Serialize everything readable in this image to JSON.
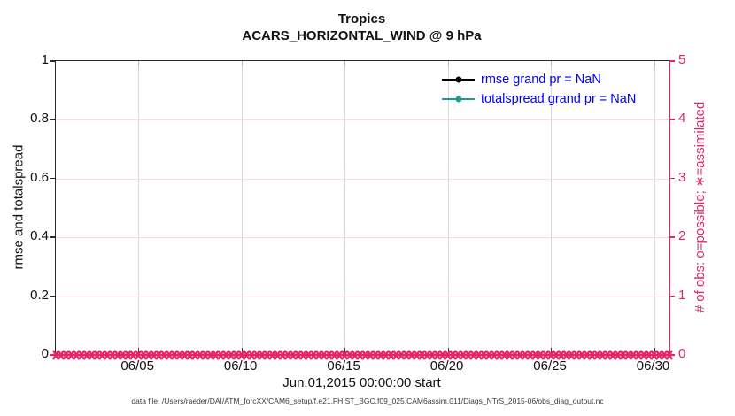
{
  "figure": {
    "title_line1": "Tropics",
    "title_line2": "ACARS_HORIZONTAL_WIND @ 9 hPa",
    "xlabel": "Jun.01,2015 00:00:00 start",
    "ylabel_left": "rmse and totalspread",
    "ylabel_right": "# of obs: o=possible; ∗=assimilated",
    "data_file_note": "data file: /Users/raeder/DAI/ATM_forcXX/CAM6_setup/f.e21.FHIST_BGC.f09_025.CAM6assim.011/Diags_NTrS_2015-06/obs_diag_output.nc"
  },
  "legend": {
    "items": [
      {
        "label": "rmse grand pr = NaN",
        "color": "#000000"
      },
      {
        "label": "totalspread grand pr = NaN",
        "color": "#1a9e93"
      }
    ],
    "text_color": "#0000ff",
    "position": "top-right-inside"
  },
  "colors": {
    "right_axis_pink": "#e2266a",
    "teal_series": "#1a9e93",
    "legend_text_blue": "#0000ff",
    "axis_dark": "#2a2a2a",
    "vgrid_gray": "#d9d9d9",
    "hgrid_pink": "#f8d9e6"
  },
  "chart_data": {
    "type": "line",
    "title": "Tropics",
    "subtitle": "ACARS_HORIZONTAL_WIND @ 9 hPa",
    "xlabel": "Jun.01,2015 00:00:00 start",
    "ylabel_left": "rmse and totalspread",
    "ylabel_right": "# of obs: o=possible; ∗=assimilated",
    "grid": true,
    "legend_position": "top-right-inside",
    "x_axis": {
      "start": "2015-06-01 00:00:00",
      "span_days": 29.75,
      "tick_days": [
        5,
        10,
        15,
        20,
        25,
        30
      ],
      "tick_labels": [
        "06/05",
        "06/10",
        "06/15",
        "06/20",
        "06/25",
        "06/30"
      ]
    },
    "y_left": {
      "range": [
        0,
        1
      ],
      "ticks": [
        0,
        0.2,
        0.4,
        0.6,
        0.8,
        1
      ],
      "tick_labels": [
        "0",
        "0.2",
        "0.4",
        "0.6",
        "0.8",
        "1"
      ]
    },
    "y_right": {
      "range": [
        0,
        5
      ],
      "ticks": [
        0,
        1,
        2,
        3,
        4,
        5
      ],
      "tick_labels": [
        "0",
        "1",
        "2",
        "3",
        "4",
        "5"
      ]
    },
    "series": [
      {
        "name": "rmse",
        "axis": "left",
        "color": "#000000",
        "grand_value": "NaN",
        "values": "NaN (nothing plotted)"
      },
      {
        "name": "totalspread",
        "axis": "left",
        "color": "#1a9e93",
        "grand_value": "NaN",
        "values": "NaN (nothing plotted)"
      },
      {
        "name": "obs possible (o)",
        "axis": "right",
        "color": "#e2266a",
        "marker": "o",
        "constant_value": 0,
        "n_points": 120,
        "interval_hours": 6
      },
      {
        "name": "obs assimilated (∗)",
        "axis": "right",
        "color": "#e2266a",
        "marker": "asterisk",
        "constant_value": 0,
        "n_points": 120,
        "interval_hours": 6
      }
    ]
  }
}
